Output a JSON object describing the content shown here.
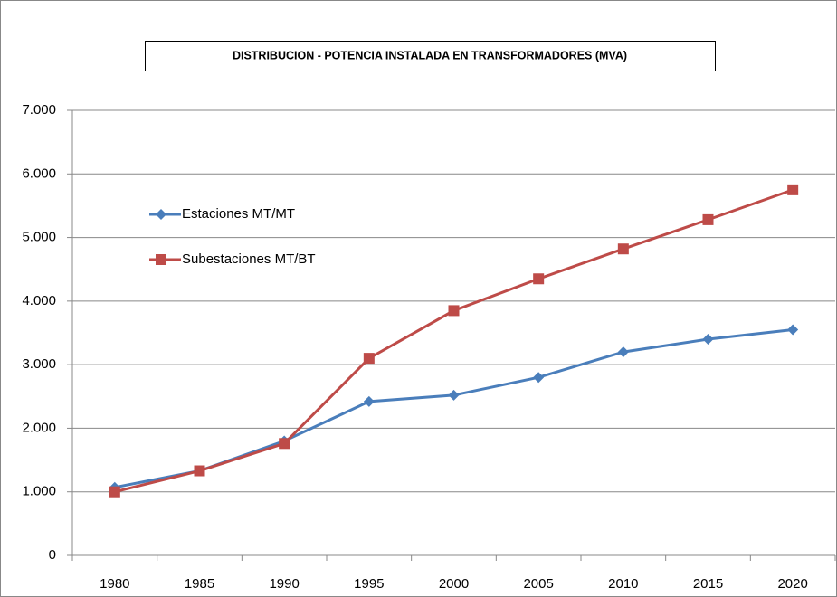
{
  "chart_data": {
    "type": "line",
    "title": "DISTRIBUCION - POTENCIA INSTALADA EN TRANSFORMADORES (MVA)",
    "categories": [
      "1980",
      "1985",
      "1990",
      "1995",
      "2000",
      "2005",
      "2010",
      "2015",
      "2020"
    ],
    "series": [
      {
        "name": "Estaciones MT/MT",
        "color": "#4a7ebb",
        "marker": "diamond",
        "values": [
          1070,
          1330,
          1800,
          2420,
          2520,
          2800,
          3200,
          3400,
          3550
        ]
      },
      {
        "name": "Subestaciones MT/BT",
        "color": "#be4b48",
        "marker": "square",
        "values": [
          1000,
          1330,
          1760,
          3100,
          3850,
          4350,
          4820,
          5280,
          5750
        ]
      }
    ],
    "ylim": [
      0,
      7000
    ],
    "yticks": [
      0,
      {
        "value": 1000,
        "label": "1.000"
      },
      {
        "value": 2000,
        "label": "2.000"
      },
      {
        "value": 3000,
        "label": "3.000"
      },
      {
        "value": 4000,
        "label": "4.000"
      },
      {
        "value": 5000,
        "label": "5.000"
      },
      {
        "value": 6000,
        "label": "6.000"
      },
      {
        "value": 7000,
        "label": "7.000"
      }
    ],
    "grid": true,
    "legend": "upper left"
  }
}
